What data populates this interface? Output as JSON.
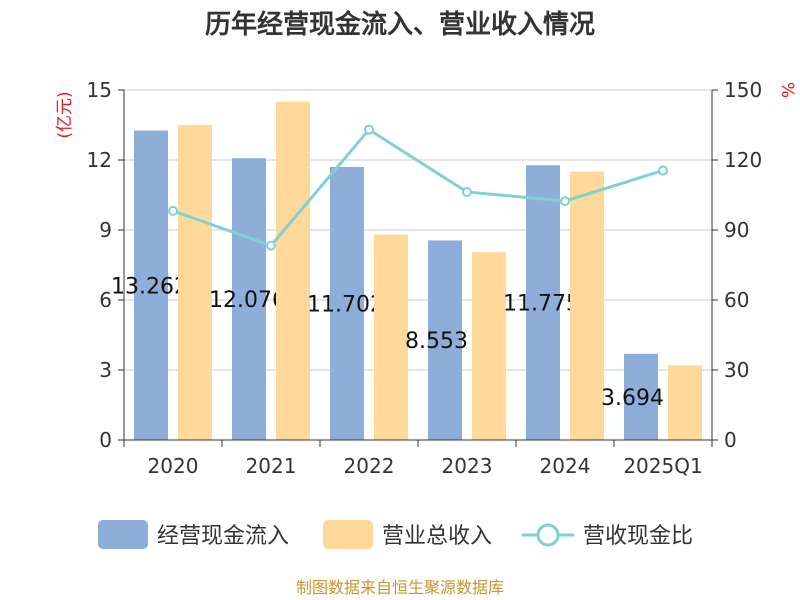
{
  "chart_data": {
    "type": "bar",
    "title": "历年经营现金流入、营业收入情况",
    "categories": [
      "2020",
      "2021",
      "2022",
      "2023",
      "2024",
      "2025Q1"
    ],
    "left_axis": {
      "unit": "(亿元)",
      "ylim": [
        0,
        15
      ],
      "ticks": [
        "0",
        "3",
        "6",
        "9",
        "12",
        "15"
      ]
    },
    "right_axis": {
      "unit": "%",
      "ylim": [
        0,
        150
      ],
      "ticks": [
        "0",
        "30",
        "60",
        "90",
        "120",
        "150"
      ]
    },
    "grid": true,
    "legend_position": "bottom",
    "series": [
      {
        "name": "经营现金流入",
        "type": "bar",
        "axis": "left",
        "color": "#8eadd9",
        "values": [
          13.262,
          12.076,
          11.702,
          8.553,
          11.775,
          3.694
        ],
        "data_labels": [
          "13.262",
          "12.076",
          "11.702",
          "8.553",
          "11.775",
          "3.694"
        ]
      },
      {
        "name": "营业总收入",
        "type": "bar",
        "axis": "left",
        "color": "#ffd99a",
        "values": [
          13.5,
          14.5,
          8.8,
          8.05,
          11.5,
          3.2
        ]
      },
      {
        "name": "营收现金比",
        "type": "line",
        "axis": "right",
        "color": "#7fd1d3",
        "values": [
          98.2,
          83.3,
          133.0,
          106.3,
          102.4,
          115.5
        ]
      }
    ]
  },
  "footer": {
    "source": "制图数据来自恒生聚源数据库"
  }
}
